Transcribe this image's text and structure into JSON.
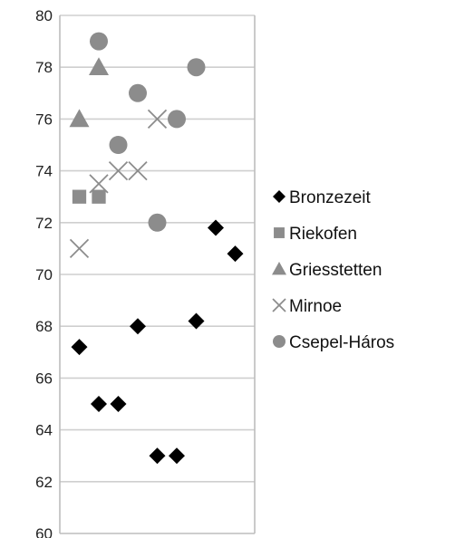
{
  "chart_data": {
    "type": "scatter",
    "title": "",
    "xlabel": "",
    "ylabel": "",
    "ylim": [
      60,
      80
    ],
    "yticks": [
      "60",
      "62",
      "64",
      "66",
      "68",
      "70",
      "72",
      "74",
      "76",
      "78",
      "80"
    ],
    "grid": "horizontal",
    "legend_position": "right",
    "x_axis": "unlabeled index positions 1-9",
    "xlim": [
      0,
      10
    ],
    "series": [
      {
        "name": "Bronzezeit",
        "marker": "diamond",
        "color": "#000000",
        "points": [
          {
            "x": 1,
            "y": 67.2
          },
          {
            "x": 2,
            "y": 65.0
          },
          {
            "x": 3,
            "y": 65.0
          },
          {
            "x": 4,
            "y": 68.0
          },
          {
            "x": 5,
            "y": 63.0
          },
          {
            "x": 6,
            "y": 63.0
          },
          {
            "x": 7,
            "y": 68.2
          },
          {
            "x": 8,
            "y": 71.8
          },
          {
            "x": 9,
            "y": 70.8
          }
        ]
      },
      {
        "name": "Riekofen",
        "marker": "square",
        "color": "#8c8c8c",
        "points": [
          {
            "x": 1,
            "y": 73.0
          },
          {
            "x": 2,
            "y": 73.0
          }
        ]
      },
      {
        "name": "Griesstetten",
        "marker": "triangle",
        "color": "#8c8c8c",
        "points": [
          {
            "x": 1,
            "y": 76.0
          },
          {
            "x": 2,
            "y": 78.0
          }
        ]
      },
      {
        "name": "Mirnoe",
        "marker": "x",
        "color": "#8c8c8c",
        "points": [
          {
            "x": 1,
            "y": 71.0
          },
          {
            "x": 2,
            "y": 73.5
          },
          {
            "x": 3,
            "y": 74.0
          },
          {
            "x": 4,
            "y": 74.0
          },
          {
            "x": 5,
            "y": 76.0
          }
        ]
      },
      {
        "name": "Csepel-Háros",
        "marker": "circle",
        "color": "#8c8c8c",
        "points": [
          {
            "x": 2,
            "y": 79.0
          },
          {
            "x": 3,
            "y": 75.0
          },
          {
            "x": 4,
            "y": 77.0
          },
          {
            "x": 5,
            "y": 72.0
          },
          {
            "x": 6,
            "y": 76.0
          },
          {
            "x": 7,
            "y": 78.0
          }
        ]
      }
    ]
  }
}
